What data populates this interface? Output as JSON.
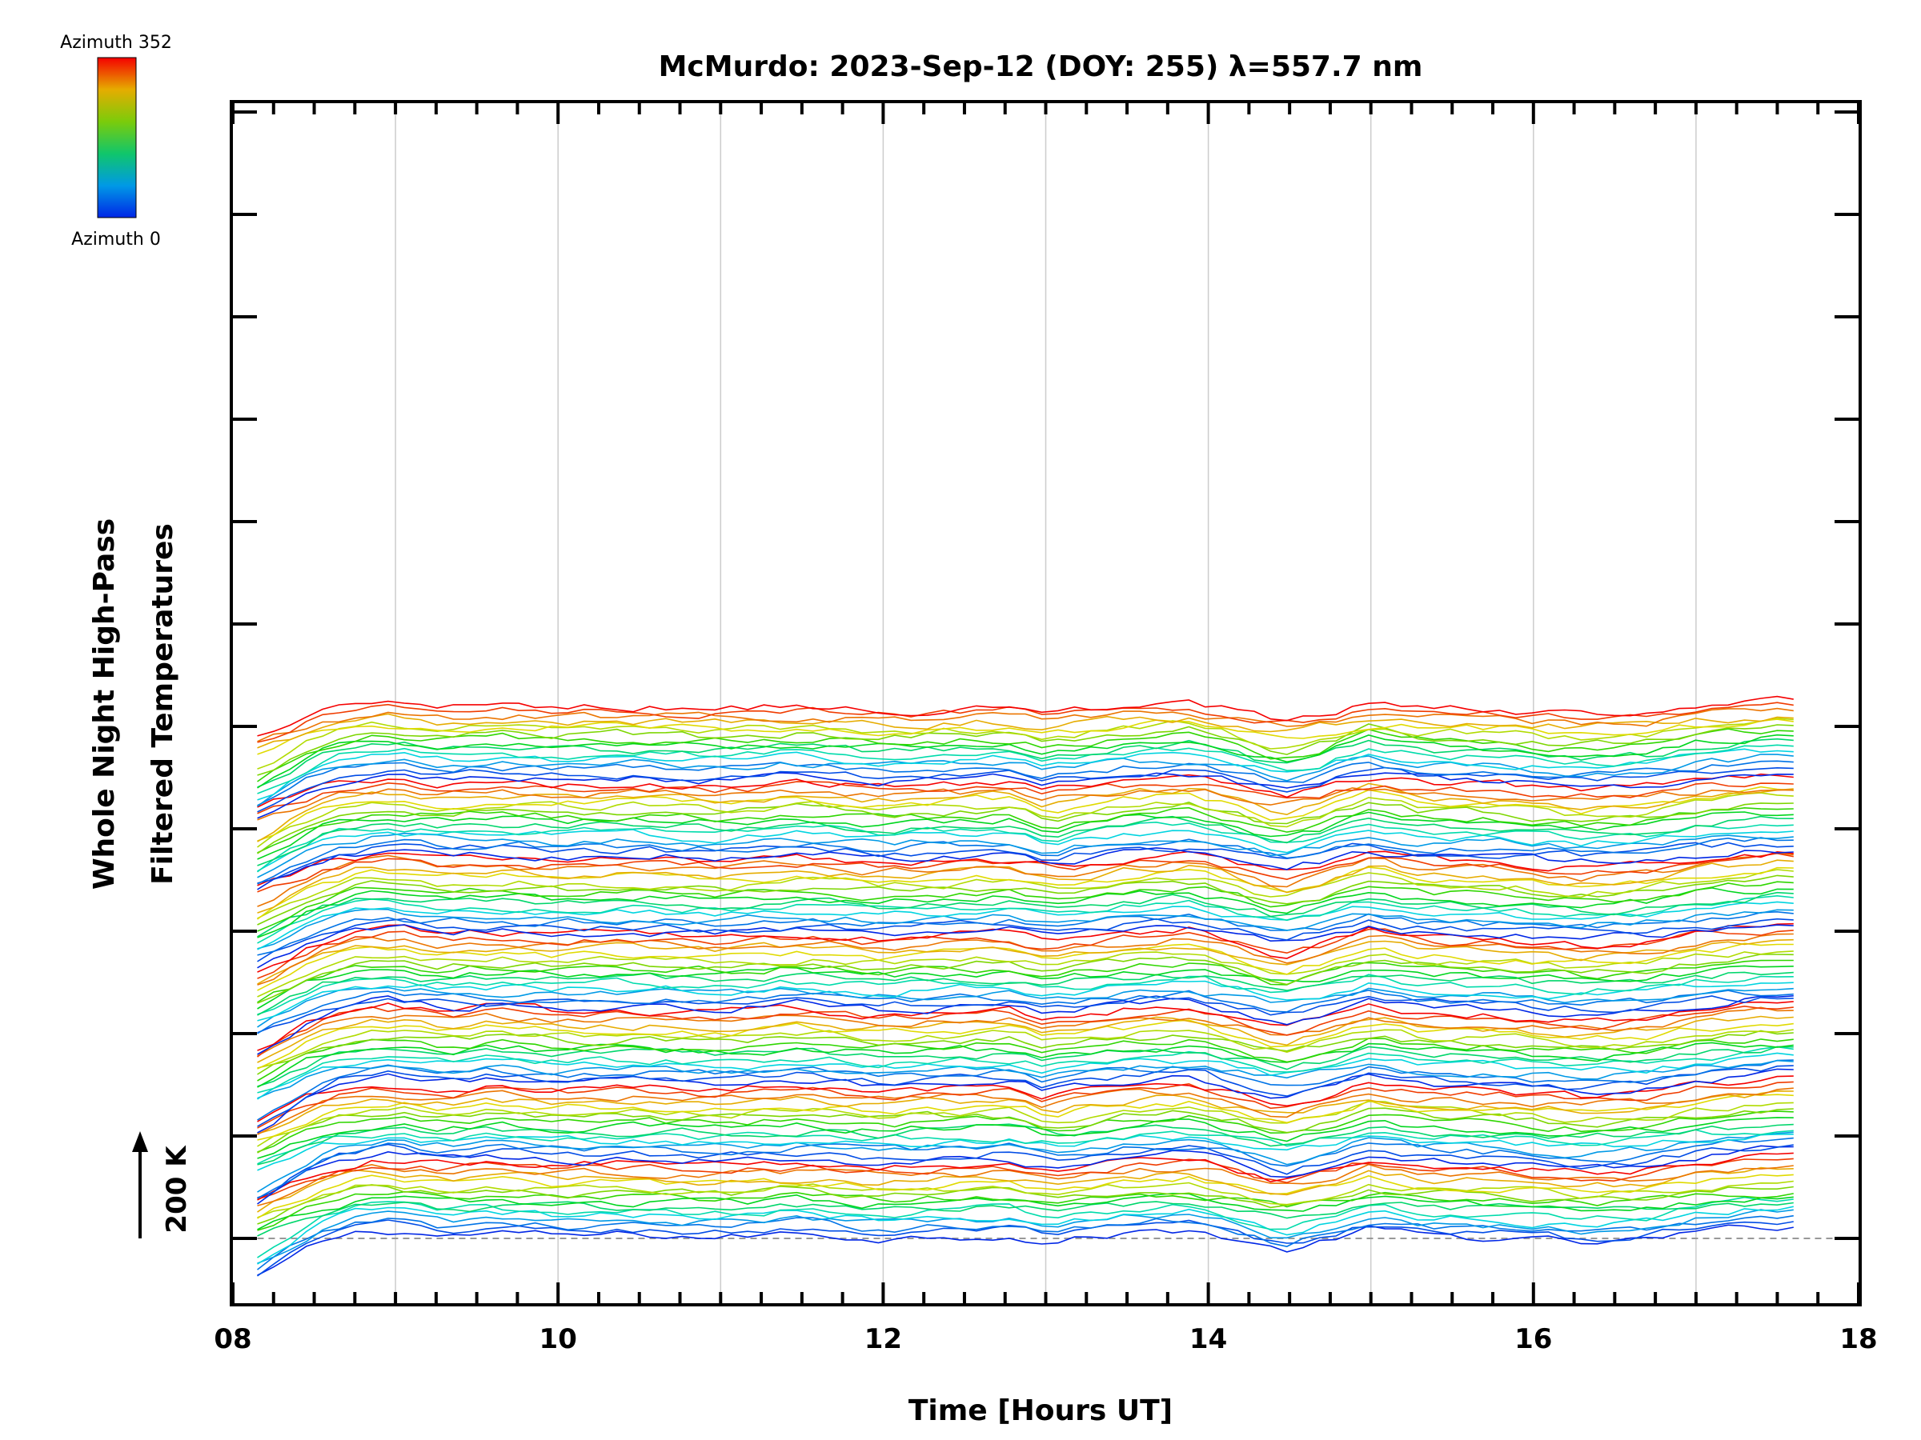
{
  "chart_data": {
    "type": "line",
    "title": "McMurdo: 2023-Sep-12 (DOY: 255) λ=557.7 nm",
    "xlabel": "Time [Hours UT]",
    "ylabel_line1": "Whole Night High-Pass",
    "ylabel_line2": "Filtered Temperatures",
    "xlim": [
      8,
      18
    ],
    "x_ticks": [
      "08",
      "10",
      "12",
      "14",
      "16",
      "18"
    ],
    "x_tick_values": [
      8,
      10,
      12,
      14,
      16,
      18
    ],
    "y_scale_label": "200 K",
    "y_scale_k": 200,
    "baseline_k": 0,
    "y_offset_step_k": 9.3,
    "x_start": 8.15,
    "x_end": 17.6,
    "colorbar": {
      "top_label": "Azimuth 352",
      "bottom_label": "Azimuth 0",
      "azimuth_min": 0,
      "azimuth_max": 352
    },
    "n_series": 112,
    "azimuth_cycle": 16,
    "common_signal_k": {
      "x": [
        8.15,
        8.5,
        8.8,
        9.0,
        9.3,
        9.6,
        10.0,
        10.5,
        11.0,
        11.5,
        12.0,
        12.3,
        12.8,
        13.0,
        13.5,
        13.9,
        14.2,
        14.45,
        14.7,
        15.0,
        15.3,
        15.8,
        16.3,
        16.7,
        17.0,
        17.6
      ],
      "y": [
        -60,
        -10,
        15,
        18,
        5,
        12,
        5,
        8,
        2,
        12,
        0,
        5,
        10,
        -10,
        12,
        20,
        -5,
        -30,
        -10,
        22,
        5,
        0,
        -12,
        -5,
        12,
        30
      ]
    }
  },
  "colors": {
    "axis": "#000000",
    "gridline": "#cccccc",
    "baseline": "#999999"
  }
}
